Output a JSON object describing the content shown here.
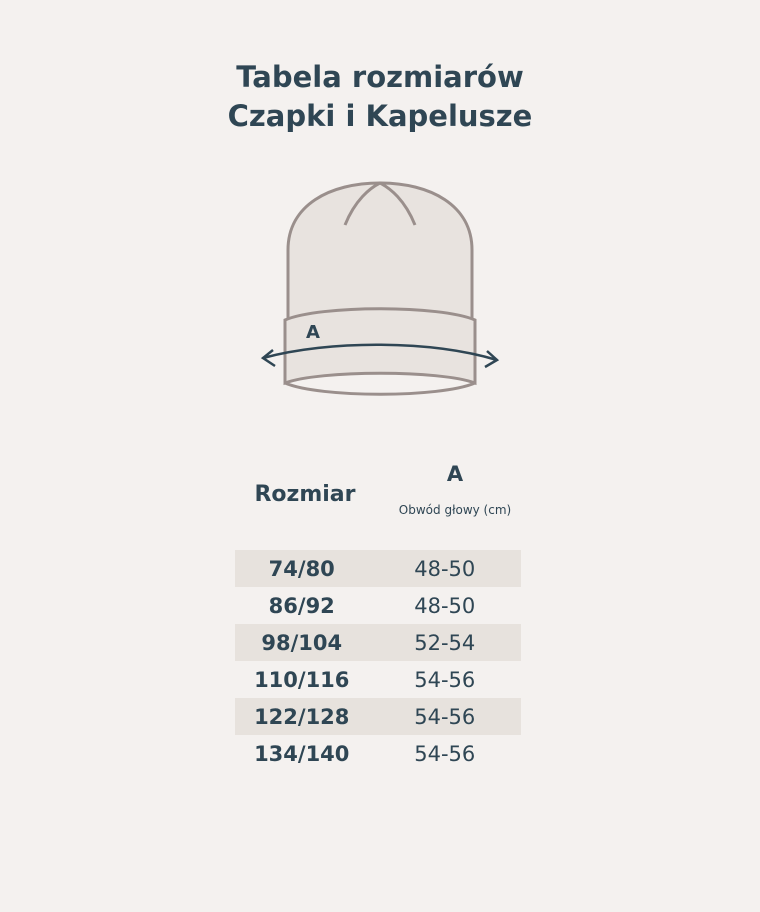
{
  "title": {
    "line1": "Tabela rozmiarów",
    "line2": "Czapki i Kapelusze"
  },
  "illustration": {
    "label": "A",
    "stroke_color": "#9a8f8c",
    "fill_color": "#e8e3df",
    "arrow_color": "#2f4654"
  },
  "table": {
    "headers": {
      "size": "Rozmiar",
      "a": "A",
      "a_sub": "Obwód głowy (cm)"
    },
    "rows": [
      {
        "size": "74/80",
        "a": "48-50"
      },
      {
        "size": "86/92",
        "a": "48-50"
      },
      {
        "size": "98/104",
        "a": "52-54"
      },
      {
        "size": "110/116",
        "a": "54-56"
      },
      {
        "size": "122/128",
        "a": "54-56"
      },
      {
        "size": "134/140",
        "a": "54-56"
      }
    ]
  },
  "colors": {
    "background": "#f4f1ef",
    "stripe": "#e7e2dd",
    "text": "#2f4654"
  }
}
